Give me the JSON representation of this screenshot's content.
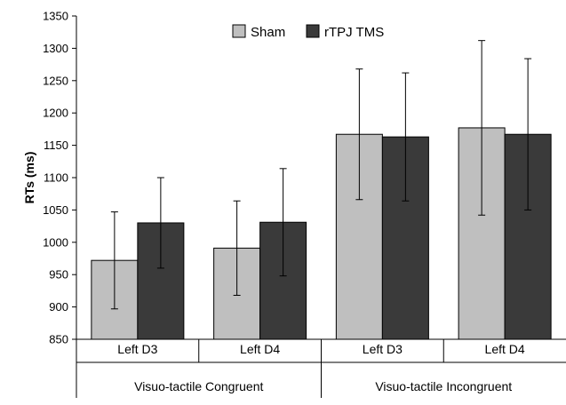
{
  "chart_data": {
    "type": "bar",
    "ylabel": "RTs (ms)",
    "ylim": [
      850,
      1350
    ],
    "yticks": [
      850,
      900,
      950,
      1000,
      1050,
      1100,
      1150,
      1200,
      1250,
      1300,
      1350
    ],
    "categories": [
      "Left D3",
      "Left D4",
      "Left D3",
      "Left D4"
    ],
    "groups": [
      {
        "label": "Visuo-tactile Congruent",
        "span": 2
      },
      {
        "label": "Visuo-tactile Incongruent",
        "span": 2
      }
    ],
    "legend_position": "top-center",
    "grid": false,
    "error_bars": true,
    "series": [
      {
        "name": "Sham",
        "color": "#bfbfbf",
        "values": [
          972,
          991,
          1167,
          1177
        ],
        "errors": [
          75,
          73,
          101,
          135
        ]
      },
      {
        "name": "rTPJ TMS",
        "color": "#3a3a3a",
        "values": [
          1030,
          1031,
          1163,
          1167
        ],
        "errors": [
          70,
          83,
          99,
          117
        ]
      }
    ]
  }
}
